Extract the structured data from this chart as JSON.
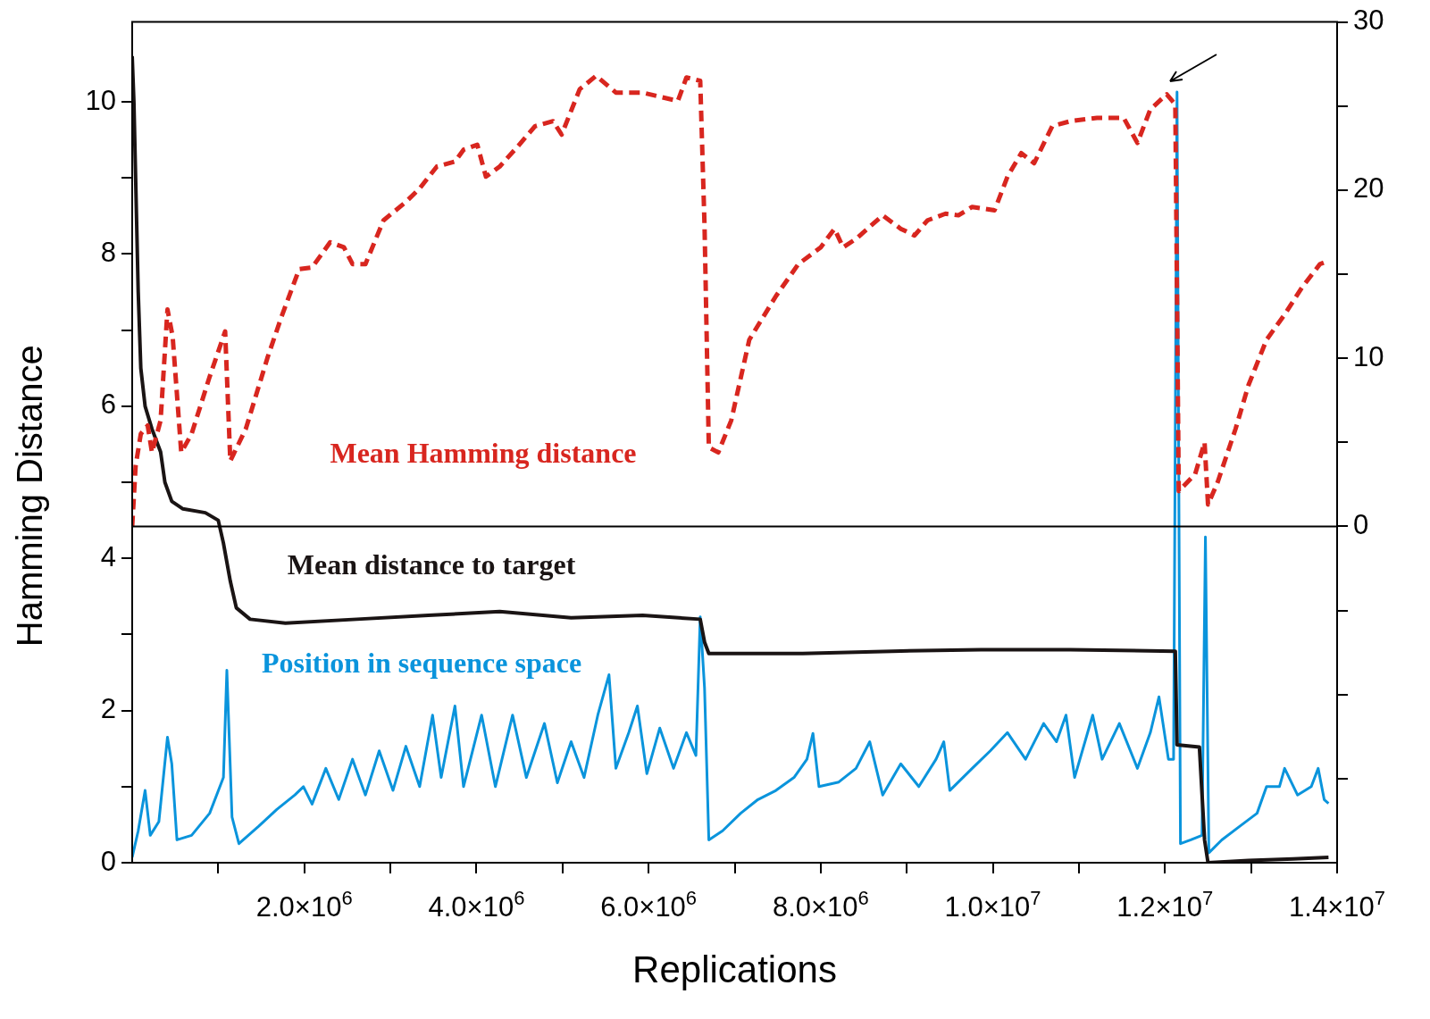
{
  "chart_data": {
    "type": "line",
    "xlabel": "Replications",
    "ylabel": "Hamming Distance",
    "legend": false,
    "marker": "none",
    "xlim": [
      0,
      14000000
    ],
    "xticks": [
      {
        "value": 1000000,
        "label": null
      },
      {
        "value": 2000000,
        "label": "2.0×10$^{6}$"
      },
      {
        "value": 3000000,
        "label": null
      },
      {
        "value": 4000000,
        "label": "4.0×10$^{6}$"
      },
      {
        "value": 5000000,
        "label": null
      },
      {
        "value": 6000000,
        "label": "6.0×10$^{6}$"
      },
      {
        "value": 7000000,
        "label": null
      },
      {
        "value": 8000000,
        "label": "8.0×10$^{6}$"
      },
      {
        "value": 9000000,
        "label": null
      },
      {
        "value": 10000000,
        "label": "1.0×10$^{7}$"
      },
      {
        "value": 11000000,
        "label": null
      },
      {
        "value": 12000000,
        "label": "1.2×10$^{7}$"
      },
      {
        "value": 13000000,
        "label": null
      },
      {
        "value": 14000000,
        "label": "1.4×10$^{7}$"
      }
    ],
    "ylim": [
      0,
      11.05
    ],
    "yticks": [
      0,
      {
        "value": 1,
        "label": null
      },
      2,
      {
        "value": 3,
        "label": null
      },
      4,
      {
        "value": 5,
        "label": null
      },
      6,
      {
        "value": 7,
        "label": null
      },
      8,
      {
        "value": 9,
        "label": null
      },
      10
    ],
    "y2lim": [
      -20,
      30
    ],
    "y2ticks": [
      {
        "value": -15,
        "label": null
      },
      {
        "value": -10,
        "label": null
      },
      {
        "value": -5,
        "label": null
      },
      0,
      {
        "value": 5,
        "label": null
      },
      10,
      {
        "value": 15,
        "label": null
      },
      20,
      {
        "value": 25,
        "label": null
      },
      30
    ],
    "ref_lines": [
      {
        "axis": "y2",
        "value": 0,
        "color": "#000000"
      }
    ],
    "series": [
      {
        "name": "Mean Hamming distance",
        "color": "#d8261f",
        "axis": "y2",
        "line_style": "dashed",
        "x": [
          0,
          40000.0,
          100000.0,
          180000.0,
          230000.0,
          330000.0,
          410000.0,
          470000.0,
          570000.0,
          690000.0,
          900000.0,
          1080000.0,
          1140000.0,
          1320000.0,
          1570000.0,
          1730000.0,
          1940000.0,
          2090000.0,
          2300000.0,
          2460000.0,
          2560000.0,
          2710000.0,
          2920000.0,
          3180000.0,
          3340000.0,
          3540000.0,
          3750000.0,
          3850000.0,
          4010000.0,
          4110000.0,
          4270000.0,
          4480000.0,
          4680000.0,
          4890000.0,
          4990000.0,
          5200000.0,
          5390000.0,
          5620000.0,
          5930000.0,
          6340000.0,
          6440000.0,
          6600000.0,
          6650000.0,
          6700000.0,
          6810000.0,
          6960000.0,
          7170000.0,
          7480000.0,
          7740000.0,
          8000000.0,
          8160000.0,
          8260000.0,
          8410000.0,
          8720000.0,
          8930000.0,
          9090000.0,
          9240000.0,
          9450000.0,
          9600000.0,
          9760000.0,
          10020000.0,
          10170000.0,
          10330000.0,
          10480000.0,
          10690000.0,
          10900000.0,
          11210000.0,
          11520000.0,
          11680000.0,
          11830000.0,
          12020000.0,
          12120000.0,
          12160000.0,
          12350000.0,
          12460000.0,
          12500000.0,
          12610000.0,
          12820000.0,
          12970000.0,
          13180000.0,
          13390000.0,
          13590000.0,
          13800000.0,
          13900000.0
        ],
        "values": [
          0,
          3.6,
          5.5,
          6.0,
          4.4,
          6.3,
          12.9,
          11.3,
          4.4,
          5.5,
          8.9,
          11.6,
          3.9,
          5.8,
          10.0,
          12.4,
          15.3,
          15.4,
          16.9,
          16.6,
          15.6,
          15.6,
          18.2,
          19.3,
          20.1,
          21.4,
          21.7,
          22.4,
          22.7,
          20.8,
          21.4,
          22.6,
          23.8,
          24.1,
          23.3,
          26.0,
          26.8,
          25.8,
          25.8,
          25.3,
          26.7,
          26.5,
          17.9,
          4.7,
          4.4,
          6.3,
          11.1,
          13.7,
          15.6,
          16.6,
          17.7,
          16.6,
          17.1,
          18.5,
          17.7,
          17.3,
          18.2,
          18.6,
          18.5,
          19.0,
          18.8,
          20.8,
          22.2,
          21.6,
          23.8,
          24.1,
          24.3,
          24.3,
          22.8,
          24.8,
          25.7,
          25.1,
          2.1,
          3.1,
          5.0,
          1.3,
          2.6,
          5.8,
          8.4,
          11.1,
          12.6,
          14.2,
          15.6,
          15.8
        ]
      },
      {
        "name": "Mean distance to target",
        "color": "#1a1414",
        "line_style": "solid",
        "x": [
          0,
          20000.0,
          40000.0,
          70000.0,
          100000.0,
          150000.0,
          230000.0,
          330000.0,
          380000.0,
          460000.0,
          590000.0,
          850000.0,
          1000000.0,
          1060000.0,
          1140000.0,
          1210000.0,
          1370000.0,
          1780000.0,
          2610000.0,
          3440000.0,
          4270000.0,
          5100000.0,
          5930000.0,
          6600000.0,
          6650000.0,
          6700000.0,
          7790000.0,
          8830000.0,
          9860000.0,
          10900000.0,
          12120000.0,
          12140000.0,
          12400000.0,
          12460000.0,
          12500000.0,
          12970000.0,
          13490000.0,
          13900000.0
        ],
        "values": [
          10.6,
          10.0,
          9.0,
          7.5,
          6.5,
          6.0,
          5.7,
          5.4,
          5.0,
          4.75,
          4.65,
          4.6,
          4.5,
          4.2,
          3.7,
          3.35,
          3.2,
          3.15,
          3.2,
          3.25,
          3.3,
          3.22,
          3.25,
          3.2,
          2.9,
          2.75,
          2.75,
          2.78,
          2.8,
          2.8,
          2.78,
          1.55,
          1.52,
          0.3,
          0.0,
          0.03,
          0.05,
          0.07
        ]
      },
      {
        "name": "Position in sequence space",
        "color": "#0a94dc",
        "line_style": "solid",
        "x": [
          0,
          70000.0,
          150000.0,
          210000.0,
          310000.0,
          410000.0,
          460000.0,
          520000.0,
          690000.0,
          900000.0,
          1060000.0,
          1100000.0,
          1160000.0,
          1240000.0,
          1470000.0,
          1680000.0,
          1890000.0,
          1990000.0,
          2090000.0,
          2250000.0,
          2400000.0,
          2560000.0,
          2710000.0,
          2870000.0,
          3030000.0,
          3180000.0,
          3340000.0,
          3490000.0,
          3590000.0,
          3750000.0,
          3850000.0,
          4060000.0,
          4220000.0,
          4420000.0,
          4580000.0,
          4790000.0,
          4940000.0,
          5100000.0,
          5250000.0,
          5410000.0,
          5540000.0,
          5620000.0,
          5770000.0,
          5870000.0,
          5980000.0,
          6130000.0,
          6290000.0,
          6440000.0,
          6550000.0,
          6600000.0,
          6650000.0,
          6700000.0,
          6860000.0,
          7070000.0,
          7270000.0,
          7480000.0,
          7690000.0,
          7840000.0,
          7910000.0,
          7980000.0,
          8210000.0,
          8410000.0,
          8570000.0,
          8720000.0,
          8930000.0,
          9140000.0,
          9340000.0,
          9430000.0,
          9500000.0,
          9760000.0,
          9970000.0,
          10170000.0,
          10380000.0,
          10590000.0,
          10740000.0,
          10850000.0,
          10950000.0,
          11160000.0,
          11270000.0,
          11470000.0,
          11680000.0,
          11830000.0,
          11930000.0,
          12040000.0,
          12100000.0,
          12140000.0,
          12180000.0,
          12300000.0,
          12430000.0,
          12470000.0,
          12510000.0,
          12660000.0,
          12870000.0,
          13070000.0,
          13180000.0,
          13330000.0,
          13390000.0,
          13540000.0,
          13700000.0,
          13780000.0,
          13850000.0,
          13900000.0
        ],
        "values": [
          0.07,
          0.42,
          0.95,
          0.36,
          0.54,
          1.65,
          1.3,
          0.3,
          0.36,
          0.65,
          1.12,
          2.53,
          0.6,
          0.25,
          0.48,
          0.7,
          0.89,
          1.0,
          0.77,
          1.24,
          0.83,
          1.36,
          0.89,
          1.47,
          0.95,
          1.53,
          1.0,
          1.94,
          1.12,
          2.06,
          1.0,
          1.94,
          1.0,
          1.94,
          1.12,
          1.83,
          1.05,
          1.59,
          1.12,
          1.94,
          2.47,
          1.24,
          1.71,
          2.06,
          1.17,
          1.77,
          1.24,
          1.71,
          1.41,
          3.23,
          2.3,
          0.3,
          0.42,
          0.65,
          0.83,
          0.95,
          1.12,
          1.36,
          1.7,
          1.0,
          1.06,
          1.24,
          1.59,
          0.89,
          1.3,
          1.0,
          1.36,
          1.59,
          0.95,
          1.24,
          1.47,
          1.71,
          1.36,
          1.83,
          1.59,
          1.94,
          1.12,
          1.94,
          1.36,
          1.83,
          1.24,
          1.71,
          2.18,
          1.36,
          1.36,
          10.13,
          0.25,
          0.3,
          0.36,
          4.28,
          0.13,
          0.3,
          0.48,
          0.65,
          1.0,
          1.0,
          1.24,
          0.89,
          1.0,
          1.24,
          0.83,
          0.78
        ]
      }
    ]
  }
}
